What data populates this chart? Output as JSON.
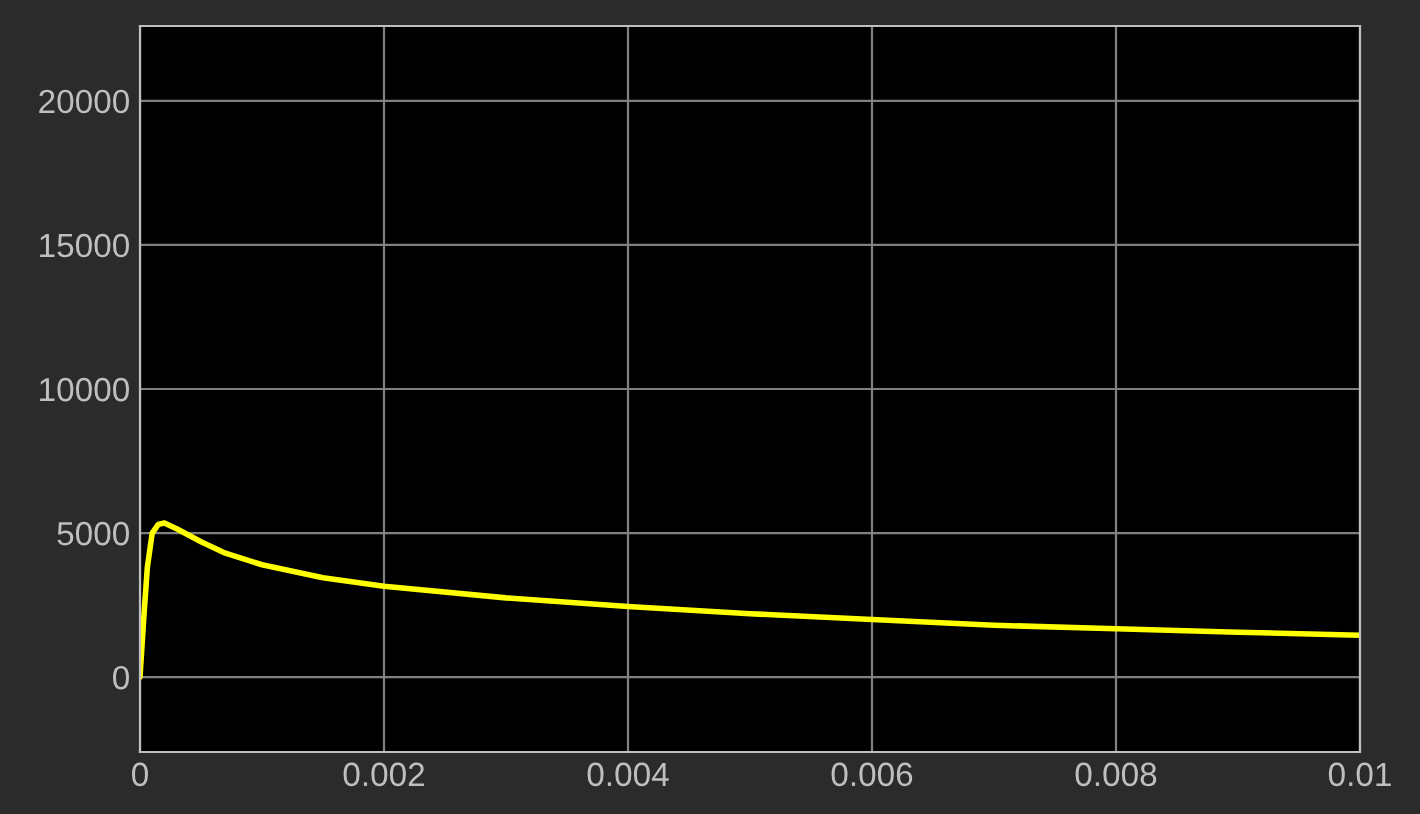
{
  "chart_data": {
    "type": "line",
    "x": [
      0,
      3e-05,
      6e-05,
      0.0001,
      0.00015,
      0.0002,
      0.0003,
      0.0005,
      0.0007,
      0.001,
      0.0015,
      0.002,
      0.003,
      0.004,
      0.005,
      0.006,
      0.007,
      0.008,
      0.009,
      0.01
    ],
    "series": [
      {
        "color": "#ffff00",
        "values": [
          0,
          2000,
          3800,
          5000,
          5300,
          5350,
          5150,
          4700,
          4300,
          3900,
          3450,
          3150,
          2750,
          2450,
          2200,
          2000,
          1800,
          1680,
          1560,
          1450
        ]
      }
    ],
    "xlim": [
      0,
      0.01
    ],
    "xticks": [
      0,
      0.002,
      0.004,
      0.006,
      0.008,
      0.01
    ],
    "ylim": [
      -2600,
      22600
    ],
    "yticks": [
      0,
      5000,
      10000,
      15000,
      20000
    ],
    "grid": true,
    "line_style": "solid",
    "marker": "none"
  }
}
